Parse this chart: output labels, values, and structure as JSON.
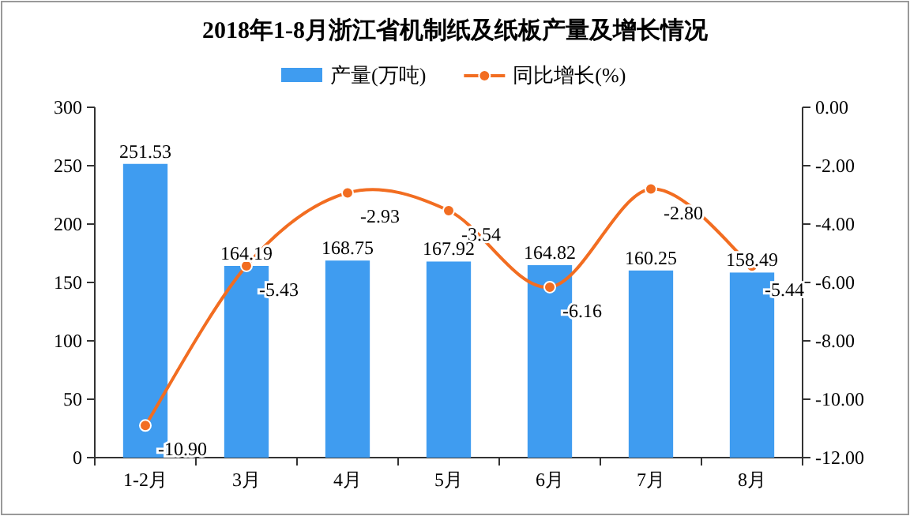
{
  "chart_data": {
    "type": "bar",
    "title": "2018年1-8月浙江省机制纸及纸板产量及增长情况",
    "categories": [
      "1-2月",
      "3月",
      "4月",
      "5月",
      "6月",
      "7月",
      "8月"
    ],
    "series": [
      {
        "name": "产量(万吨)",
        "color": "#3f9cf0",
        "values": [
          251.53,
          164.19,
          168.75,
          167.92,
          164.82,
          160.25,
          158.49
        ],
        "value_labels": [
          "251.53",
          "164.19",
          "168.75",
          "167.92",
          "164.82",
          "160.25",
          "158.49"
        ]
      },
      {
        "name": "同比增长(%)",
        "type": "line",
        "axis": "y2",
        "color": "#f26d21",
        "values": [
          -10.9,
          -5.43,
          -2.93,
          -3.54,
          -6.16,
          -2.8,
          -5.44
        ],
        "value_labels": [
          "-10.90",
          "-5.43",
          "-2.93",
          "-3.54",
          "-6.16",
          "-2.80",
          "-5.44"
        ]
      }
    ],
    "ylim": [
      0,
      300
    ],
    "yticks": [
      0,
      50,
      100,
      150,
      200,
      250,
      300
    ],
    "y2lim": [
      -12,
      0
    ],
    "y2ticks": [
      {
        "value": 0,
        "label": "0.00"
      },
      {
        "value": -2,
        "label": "-2.00"
      },
      {
        "value": -4,
        "label": "-4.00"
      },
      {
        "value": -6,
        "label": "-6.00"
      },
      {
        "value": -8,
        "label": "-8.00"
      },
      {
        "value": -10,
        "label": "-10.00"
      },
      {
        "value": -12,
        "label": "-12.00"
      }
    ],
    "legend": "top",
    "marker": "circle"
  }
}
